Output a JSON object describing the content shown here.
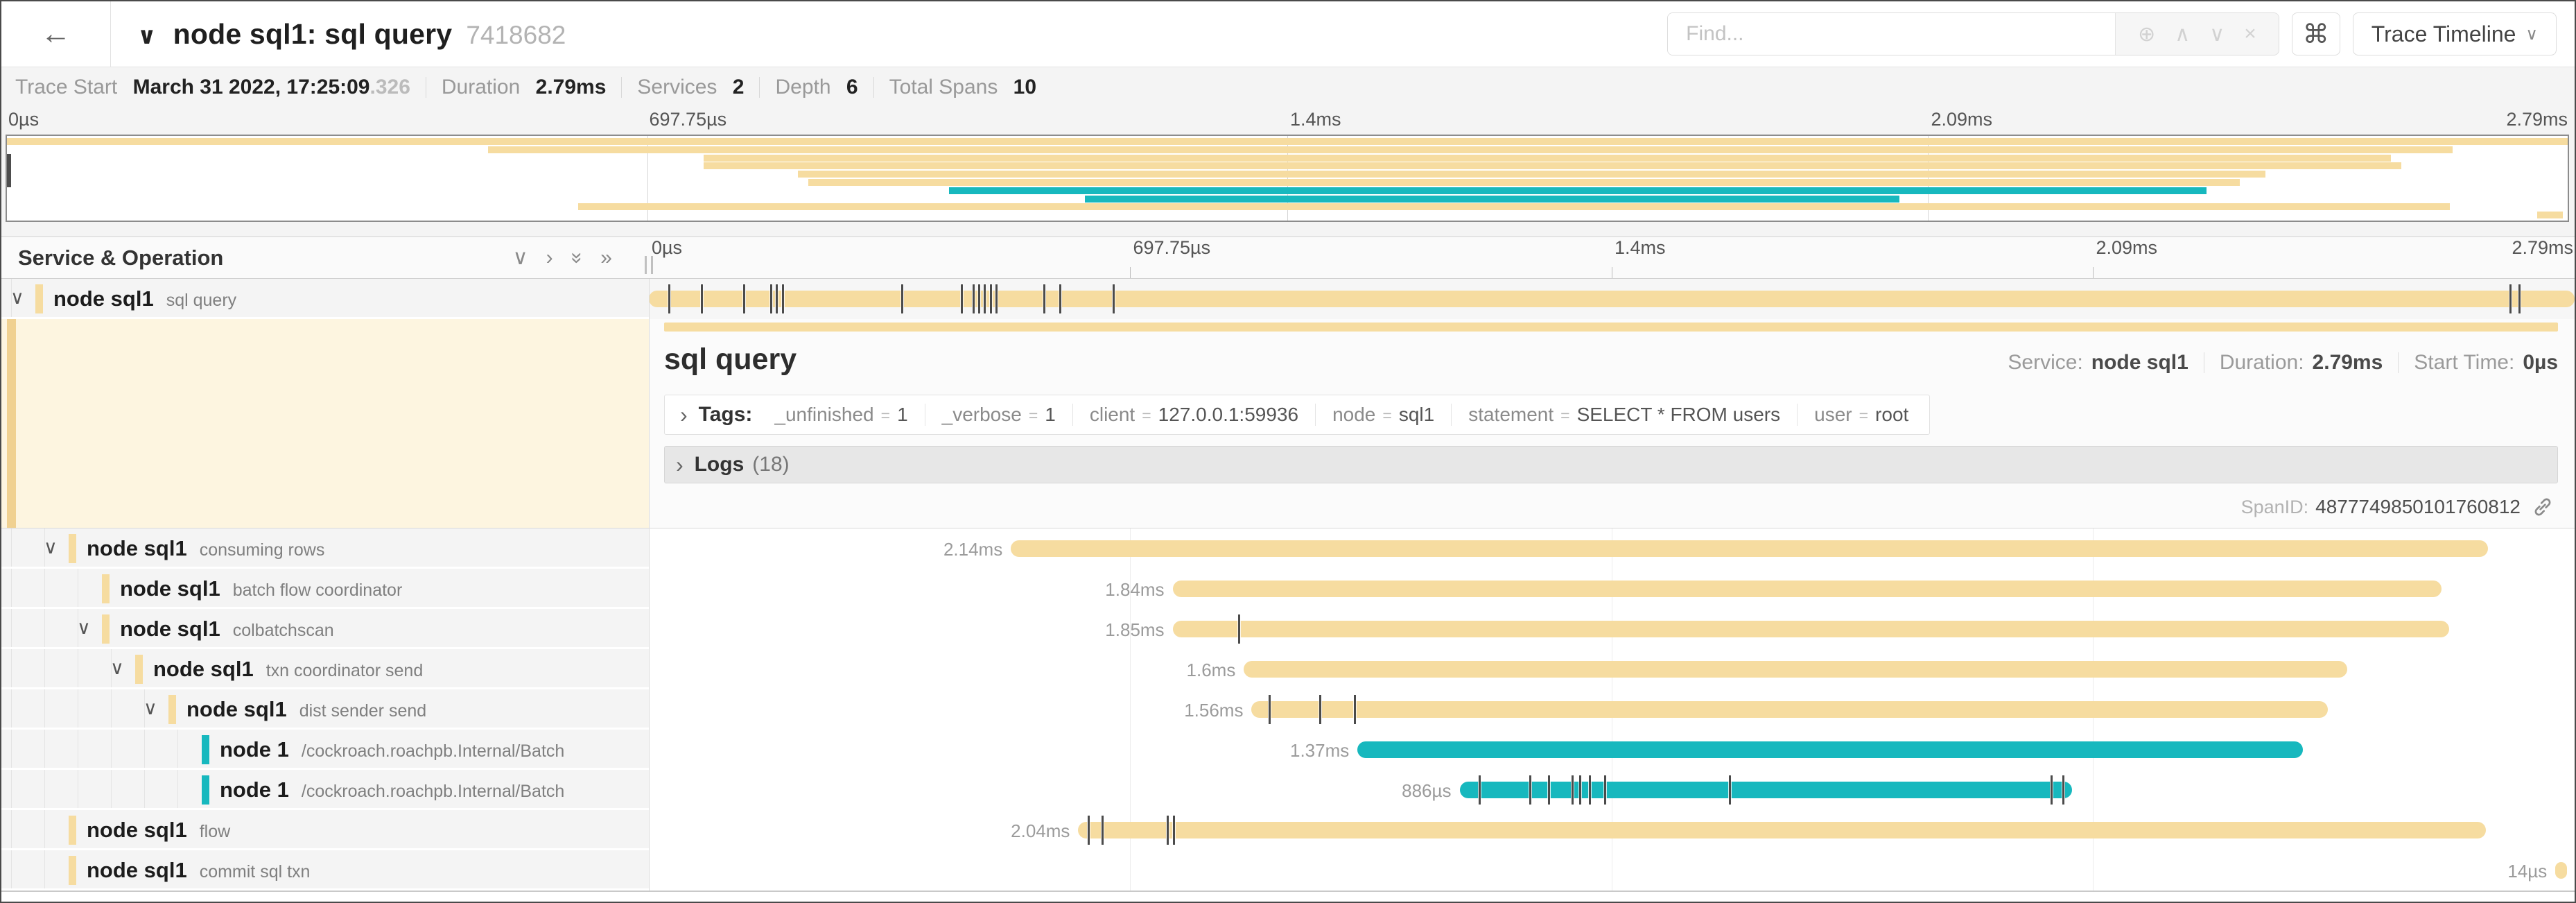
{
  "colors": {
    "tan": "#F6DCA0",
    "teal": "#17B8BE",
    "stripe": "#F0D191",
    "cream": "#FDF5E0"
  },
  "header": {
    "back_icon": "←",
    "collapse_icon": "∨",
    "title": "node sql1: sql query",
    "trace_id": "7418682",
    "find_placeholder": "Find...",
    "find_icons": {
      "match": "⊕",
      "prev": "∧",
      "next": "∨",
      "clear": "×"
    },
    "shortcut_icon": "⌘",
    "view_selector": "Trace Timeline",
    "view_caret": "∨"
  },
  "summary": {
    "items": [
      {
        "label": "Trace Start",
        "value": "March 31 2022, 17:25:09",
        "suffix": ".326"
      },
      {
        "label": "Duration",
        "value": "2.79ms",
        "suffix": ""
      },
      {
        "label": "Services",
        "value": "2",
        "suffix": ""
      },
      {
        "label": "Depth",
        "value": "6",
        "suffix": ""
      },
      {
        "label": "Total Spans",
        "value": "10",
        "suffix": ""
      }
    ]
  },
  "ruler_labels": [
    "0µs",
    "697.75µs",
    "1.4ms",
    "2.09ms",
    "2.79ms"
  ],
  "minimap": {
    "rows": [
      {
        "start": 0,
        "end": 1,
        "color": "tan"
      },
      {
        "start": 0.188,
        "end": 0.955,
        "color": "tan"
      },
      {
        "start": 0.272,
        "end": 0.931,
        "color": "tan"
      },
      {
        "start": 0.272,
        "end": 0.935,
        "color": "tan"
      },
      {
        "start": 0.309,
        "end": 0.882,
        "color": "tan"
      },
      {
        "start": 0.313,
        "end": 0.872,
        "color": "tan"
      },
      {
        "start": 0.368,
        "end": 0.859,
        "color": "teal"
      },
      {
        "start": 0.421,
        "end": 0.739,
        "color": "teal"
      },
      {
        "start": 0.223,
        "end": 0.954,
        "color": "tan"
      },
      {
        "start": 0.988,
        "end": 0.998,
        "color": "tan"
      }
    ]
  },
  "tree_header": {
    "title": "Service & Operation",
    "icons": {
      "collapse_one": "∨",
      "expand_one": "›",
      "collapse_all": "»",
      "expand_all": "»"
    }
  },
  "spans": [
    {
      "service": "node sql1",
      "operation": "sql query",
      "level": 0,
      "color": "tan",
      "has_children": true,
      "selected": true,
      "start": 0,
      "width": 1,
      "duration_label": "",
      "ticks": [
        0.01,
        0.027,
        0.049,
        0.063,
        0.066,
        0.069,
        0.131,
        0.162,
        0.168,
        0.171,
        0.174,
        0.177,
        0.18,
        0.205,
        0.213,
        0.241,
        0.966,
        0.971
      ]
    },
    {
      "service": "node sql1",
      "operation": "consuming rows",
      "level": 1,
      "color": "tan",
      "has_children": true,
      "selected": false,
      "start": 0.188,
      "width": 0.767,
      "duration_label": "2.14ms",
      "ticks": []
    },
    {
      "service": "node sql1",
      "operation": "batch flow coordinator",
      "level": 2,
      "color": "tan",
      "has_children": false,
      "selected": false,
      "start": 0.272,
      "width": 0.659,
      "duration_label": "1.84ms",
      "ticks": []
    },
    {
      "service": "node sql1",
      "operation": "colbatchscan",
      "level": 2,
      "color": "tan",
      "has_children": true,
      "selected": false,
      "start": 0.272,
      "width": 0.663,
      "duration_label": "1.85ms",
      "ticks": [
        0.306
      ]
    },
    {
      "service": "node sql1",
      "operation": "txn coordinator send",
      "level": 3,
      "color": "tan",
      "has_children": true,
      "selected": false,
      "start": 0.309,
      "width": 0.573,
      "duration_label": "1.6ms",
      "ticks": []
    },
    {
      "service": "node sql1",
      "operation": "dist sender send",
      "level": 4,
      "color": "tan",
      "has_children": true,
      "selected": false,
      "start": 0.313,
      "width": 0.559,
      "duration_label": "1.56ms",
      "ticks": [
        0.322,
        0.348,
        0.366
      ]
    },
    {
      "service": "node 1",
      "operation": "/cockroach.roachpb.Internal/Batch",
      "level": 5,
      "color": "teal",
      "has_children": false,
      "selected": false,
      "start": 0.368,
      "width": 0.491,
      "duration_label": "1.37ms",
      "ticks": []
    },
    {
      "service": "node 1",
      "operation": "/cockroach.roachpb.Internal/Batch",
      "level": 5,
      "color": "teal",
      "has_children": false,
      "selected": false,
      "start": 0.421,
      "width": 0.318,
      "duration_label": "886µs",
      "ticks": [
        0.431,
        0.457,
        0.467,
        0.479,
        0.483,
        0.488,
        0.496,
        0.561,
        0.728,
        0.734
      ]
    },
    {
      "service": "node sql1",
      "operation": "flow",
      "level": 1,
      "color": "tan",
      "has_children": false,
      "selected": false,
      "start": 0.223,
      "width": 0.731,
      "duration_label": "2.04ms",
      "ticks": [
        0.228,
        0.235,
        0.269,
        0.272
      ]
    },
    {
      "service": "node sql1",
      "operation": "commit sql txn",
      "level": 1,
      "color": "tan",
      "has_children": false,
      "selected": false,
      "start": 0.99,
      "width": 0.006,
      "duration_label": "14µs",
      "ticks": []
    }
  ],
  "detail": {
    "title": "sql query",
    "service_label": "Service:",
    "service": "node sql1",
    "duration_label": "Duration:",
    "duration": "2.79ms",
    "start_label": "Start Time:",
    "start": "0µs",
    "tags_chevron": "›",
    "tags_label": "Tags:",
    "tags": [
      {
        "key": "_unfinished",
        "value": "1"
      },
      {
        "key": "_verbose",
        "value": "1"
      },
      {
        "key": "client",
        "value": "127.0.0.1:59936"
      },
      {
        "key": "node",
        "value": "sql1"
      },
      {
        "key": "statement",
        "value": "SELECT * FROM users"
      },
      {
        "key": "user",
        "value": "root"
      }
    ],
    "logs_chevron": "›",
    "logs_label": "Logs",
    "logs_count": "(18)",
    "span_id_label": "SpanID:",
    "span_id": "4877749850101760812"
  }
}
